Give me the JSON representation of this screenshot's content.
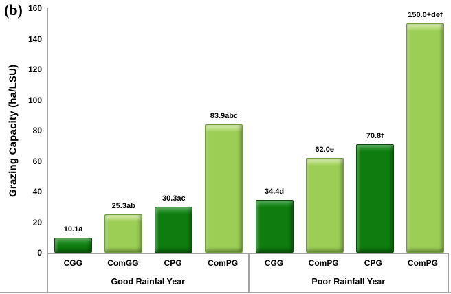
{
  "figure": {
    "panel_label": "(b)"
  },
  "chart_data": {
    "type": "bar",
    "title": "",
    "xlabel": "",
    "ylabel": "Grazing Capacity (ha/LSU)",
    "ylim": [
      0,
      160
    ],
    "ytick_step": 20,
    "grid": false,
    "legend": false,
    "axis_color": "#a3a3a3",
    "bar_colors": {
      "dark": {
        "fill": "#0e7c0e",
        "highlight": "#2e9632",
        "edge": "#0a4a0a"
      },
      "light": {
        "fill": "#9cce55",
        "highlight": "#c6e492",
        "edge": "#6e9e3a"
      }
    },
    "groups": [
      {
        "label": "Good Rainfal Year",
        "bars": [
          {
            "category": "CGG",
            "value": 10.1,
            "data_label": "10.1a",
            "color": "dark"
          },
          {
            "category": "ComGG",
            "value": 25.3,
            "data_label": "25.3ab",
            "color": "light"
          },
          {
            "category": "CPG",
            "value": 30.3,
            "data_label": "30.3ac",
            "color": "dark"
          },
          {
            "category": "ComPG",
            "value": 83.9,
            "data_label": "83.9abc",
            "color": "light"
          }
        ]
      },
      {
        "label": "Poor Rainfall Year",
        "bars": [
          {
            "category": "CGG",
            "value": 34.4,
            "data_label": "34.4d",
            "color": "dark"
          },
          {
            "category": "ComPG",
            "value": 62.0,
            "data_label": "62.0e",
            "color": "light"
          },
          {
            "category": "CPG",
            "value": 70.8,
            "data_label": "70.8f",
            "color": "dark"
          },
          {
            "category": "ComPG",
            "value": 150.0,
            "data_label": "150.0+def",
            "color": "light"
          }
        ]
      }
    ]
  }
}
